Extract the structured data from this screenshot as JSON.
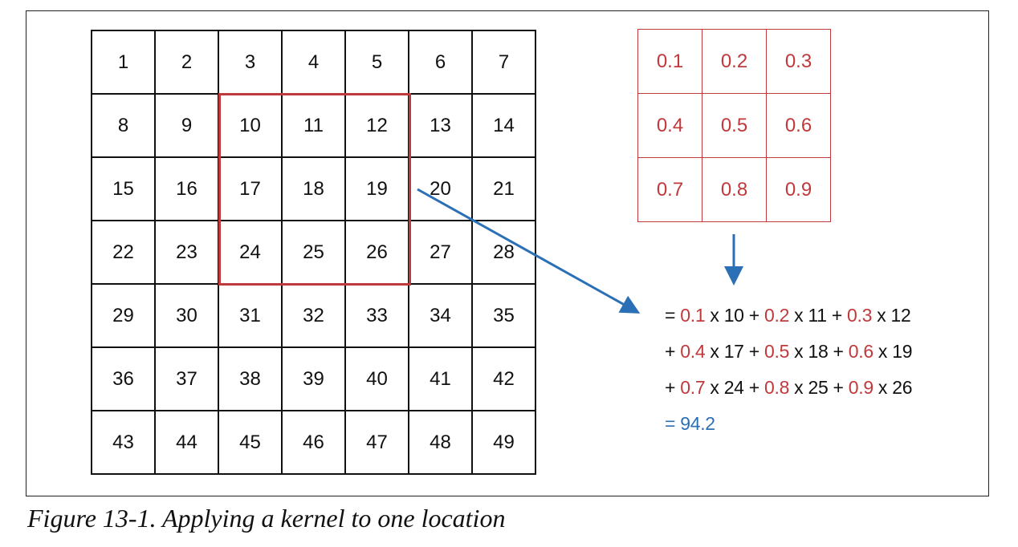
{
  "input_grid": {
    "rows": [
      [
        "1",
        "2",
        "3",
        "4",
        "5",
        "6",
        "7"
      ],
      [
        "8",
        "9",
        "10",
        "11",
        "12",
        "13",
        "14"
      ],
      [
        "15",
        "16",
        "17",
        "18",
        "19",
        "20",
        "21"
      ],
      [
        "22",
        "23",
        "24",
        "25",
        "26",
        "27",
        "28"
      ],
      [
        "29",
        "30",
        "31",
        "32",
        "33",
        "34",
        "35"
      ],
      [
        "36",
        "37",
        "38",
        "39",
        "40",
        "41",
        "42"
      ],
      [
        "43",
        "44",
        "45",
        "46",
        "47",
        "48",
        "49"
      ]
    ],
    "highlight": {
      "row_start": 1,
      "col_start": 2,
      "size": 3
    }
  },
  "kernel": {
    "rows": [
      [
        "0.1",
        "0.2",
        "0.3"
      ],
      [
        "0.4",
        "0.5",
        "0.6"
      ],
      [
        "0.7",
        "0.8",
        "0.9"
      ]
    ]
  },
  "equation": {
    "line1": [
      "= ",
      "0.1",
      "  x 10 + ",
      "0.2",
      " x 11  + ",
      "0.3",
      " x 12"
    ],
    "line2": [
      "+ ",
      "0.4",
      " x 17  + ",
      "0.5",
      " x 18 + ",
      "0.6",
      " x 19"
    ],
    "line3": [
      "+ ",
      "0.7",
      " x 24 + ",
      "0.8",
      " x 25 + ",
      "0.9",
      " x 26"
    ],
    "result": "= 94.2"
  },
  "colors": {
    "kernel_red": "#c0393b",
    "arrow_blue": "#2b6fb6",
    "text_black": "#111111"
  },
  "caption": "Figure 13-1. Applying a kernel to one location"
}
